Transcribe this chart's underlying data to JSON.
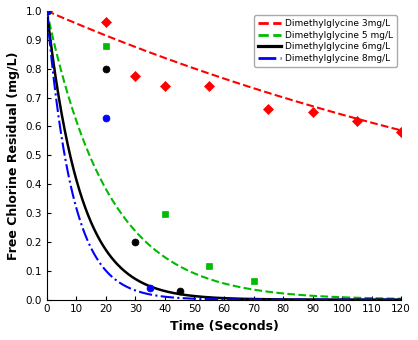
{
  "xlabel": "Time (Seconds)",
  "ylabel": "Free Chlorine Residual (mg/L)",
  "xlim": [
    0,
    120
  ],
  "ylim": [
    0,
    1.0
  ],
  "xticks": [
    0,
    10,
    20,
    30,
    40,
    50,
    60,
    70,
    80,
    90,
    100,
    110,
    120
  ],
  "yticks": [
    0.0,
    0.1,
    0.2,
    0.3,
    0.4,
    0.5,
    0.6,
    0.7,
    0.8,
    0.9,
    1.0
  ],
  "series": [
    {
      "label": "Dimethylglycine 3mg/L",
      "color": "#ff0000",
      "linestyle": "--",
      "linewidth": 1.5,
      "marker": "D",
      "markersize": 5,
      "k": 0.00445,
      "data_x": [
        0,
        20,
        30,
        40,
        55,
        75,
        90,
        105,
        120
      ],
      "data_y": [
        1.0,
        0.96,
        0.775,
        0.74,
        0.74,
        0.66,
        0.65,
        0.62,
        0.58
      ]
    },
    {
      "label": "Dimethylglycine 5 mg/L",
      "color": "#00bb00",
      "linestyle": "--",
      "linewidth": 1.5,
      "marker": "s",
      "markersize": 5,
      "k": 0.048,
      "data_x": [
        0,
        20,
        40,
        55,
        70
      ],
      "data_y": [
        1.0,
        0.88,
        0.295,
        0.115,
        0.065
      ]
    },
    {
      "label": "Dimethylglycine 6mg/L",
      "color": "#000000",
      "linestyle": "-",
      "linewidth": 1.8,
      "marker": "o",
      "markersize": 5,
      "k": 0.088,
      "data_x": [
        0,
        20,
        30,
        45
      ],
      "data_y": [
        1.0,
        0.8,
        0.2,
        0.03
      ]
    },
    {
      "label": "Dimethylglycine 8mg/L",
      "color": "#0000ff",
      "linestyle": "-.",
      "linewidth": 1.5,
      "marker": "o",
      "markersize": 5,
      "k": 0.115,
      "data_x": [
        0,
        20,
        35
      ],
      "data_y": [
        1.0,
        0.63,
        0.04
      ]
    }
  ],
  "background_color": "#ffffff",
  "legend_fontsize": 6.5,
  "axis_label_fontsize": 9,
  "tick_fontsize": 7.5
}
